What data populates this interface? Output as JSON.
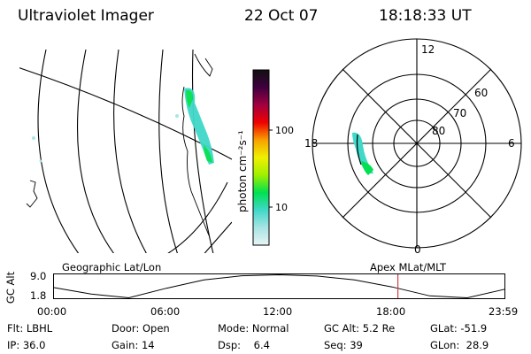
{
  "header": {
    "instrument": "Ultraviolet Imager",
    "date": "22 Oct 07",
    "time": "18:18:33 UT"
  },
  "colorbar": {
    "label": "photon cm⁻²s⁻¹",
    "ticks": [
      "100",
      "10"
    ]
  },
  "polar": {
    "mlt_labels": [
      "12",
      "18",
      "6",
      "0"
    ],
    "lat_labels": [
      "60",
      "70",
      "80"
    ]
  },
  "footer": {
    "left_caption": "Geographic Lat/Lon",
    "right_caption": "Apex MLat/MLT",
    "axis_title": "GC Alt",
    "alt_max": "9.0",
    "alt_min": "1.8",
    "time_ticks": [
      "00:00",
      "06:00",
      "12:00",
      "18:00",
      "23:59"
    ]
  },
  "orbit": {
    "x": [
      0,
      2,
      4,
      6,
      8,
      10,
      12,
      14,
      16,
      18,
      20,
      22,
      24
    ],
    "y": [
      5.0,
      3.0,
      1.8,
      4.8,
      7.4,
      8.7,
      9.0,
      8.6,
      7.4,
      5.2,
      2.4,
      1.8,
      4.5
    ],
    "current_time": 18.31
  },
  "info": [
    [
      {
        "k": "Flt:",
        "v": "LBHL"
      },
      {
        "k": "Door:",
        "v": "Open"
      },
      {
        "k": "Mode:",
        "v": "Normal"
      },
      {
        "k": "GC Alt:",
        "v": "5.2 Re"
      },
      {
        "k": "GLat:",
        "v": "-51.9"
      }
    ],
    [
      {
        "k": "IP:",
        "v": "36.0"
      },
      {
        "k": "Gain:",
        "v": "14"
      },
      {
        "k": "Dsp:",
        "v": "6.4"
      },
      {
        "k": "Seq:",
        "v": "39"
      },
      {
        "k": "GLon:",
        "v": "28.9"
      }
    ]
  ],
  "colors": {
    "stops": [
      "#e8f4f4",
      "#a8e4e4",
      "#40d8c8",
      "#00e050",
      "#a0f000",
      "#f0f000",
      "#f8a000",
      "#f00000",
      "#a00040",
      "#400040",
      "#101010"
    ],
    "marker": "#d04040"
  }
}
